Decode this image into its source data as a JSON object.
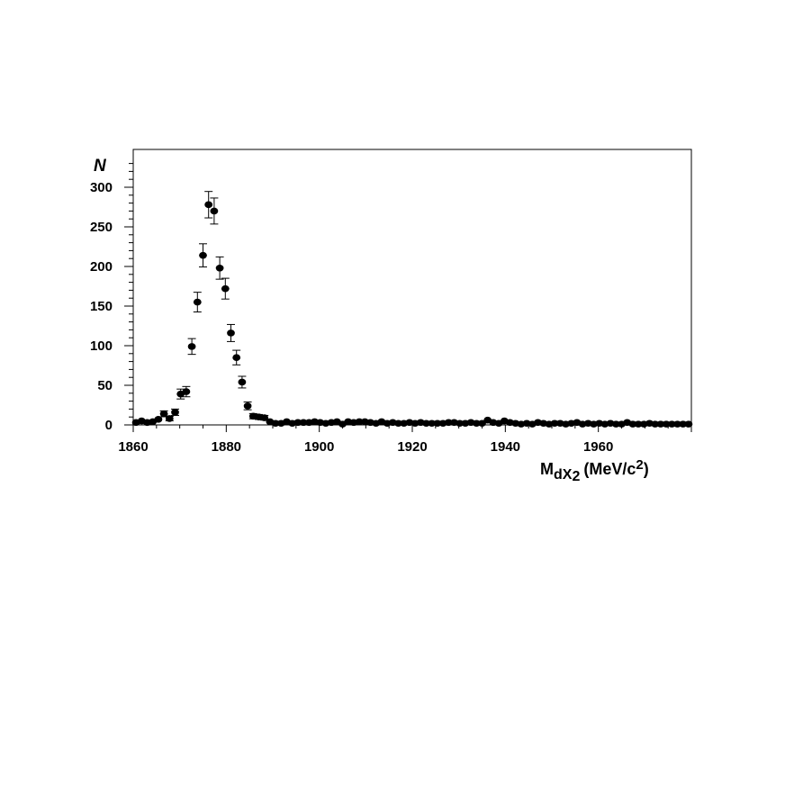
{
  "chart_data": {
    "type": "scatter",
    "ylabel": "N",
    "xlabel": {
      "main": "M",
      "sub": "dX",
      "subsub": "2",
      "unit": "(MeV/c",
      "unit_sup": "2",
      "unit_close": ")"
    },
    "xlim": [
      1860,
      1980
    ],
    "ylim": [
      0,
      300
    ],
    "x_ticks": [
      1860,
      1880,
      1900,
      1920,
      1940,
      1960
    ],
    "y_ticks": [
      0,
      50,
      100,
      150,
      200,
      250,
      300
    ],
    "grid": false,
    "marker": "filled-circle",
    "error_bars": true,
    "points": [
      {
        "x": 1860.6,
        "y": 3
      },
      {
        "x": 1861.8,
        "y": 5
      },
      {
        "x": 1863.0,
        "y": 3
      },
      {
        "x": 1864.2,
        "y": 4
      },
      {
        "x": 1865.4,
        "y": 7
      },
      {
        "x": 1866.6,
        "y": 14
      },
      {
        "x": 1867.8,
        "y": 8
      },
      {
        "x": 1869.0,
        "y": 16
      },
      {
        "x": 1870.2,
        "y": 39
      },
      {
        "x": 1871.4,
        "y": 42
      },
      {
        "x": 1872.6,
        "y": 99
      },
      {
        "x": 1873.8,
        "y": 155
      },
      {
        "x": 1875.0,
        "y": 214
      },
      {
        "x": 1876.2,
        "y": 278
      },
      {
        "x": 1877.4,
        "y": 270
      },
      {
        "x": 1878.6,
        "y": 198
      },
      {
        "x": 1879.8,
        "y": 172
      },
      {
        "x": 1881.0,
        "y": 116
      },
      {
        "x": 1882.2,
        "y": 85
      },
      {
        "x": 1883.4,
        "y": 54
      },
      {
        "x": 1884.6,
        "y": 24
      },
      {
        "x": 1885.8,
        "y": 11
      },
      {
        "x": 1887.0,
        "y": 10
      },
      {
        "x": 1888.2,
        "y": 9
      },
      {
        "x": 1889.4,
        "y": 4
      },
      {
        "x": 1890.6,
        "y": 2
      },
      {
        "x": 1891.8,
        "y": 2
      },
      {
        "x": 1893.0,
        "y": 4
      },
      {
        "x": 1894.2,
        "y": 2
      },
      {
        "x": 1895.4,
        "y": 3
      },
      {
        "x": 1896.6,
        "y": 3
      },
      {
        "x": 1897.8,
        "y": 3
      },
      {
        "x": 1899.0,
        "y": 4
      },
      {
        "x": 1900.2,
        "y": 3
      },
      {
        "x": 1901.4,
        "y": 2
      },
      {
        "x": 1902.6,
        "y": 3
      },
      {
        "x": 1903.8,
        "y": 4
      },
      {
        "x": 1905.0,
        "y": 1
      },
      {
        "x": 1906.2,
        "y": 4
      },
      {
        "x": 1907.4,
        "y": 3
      },
      {
        "x": 1908.6,
        "y": 4
      },
      {
        "x": 1909.8,
        "y": 4
      },
      {
        "x": 1911.0,
        "y": 3
      },
      {
        "x": 1912.2,
        "y": 2
      },
      {
        "x": 1913.4,
        "y": 4
      },
      {
        "x": 1914.6,
        "y": 2
      },
      {
        "x": 1915.8,
        "y": 3
      },
      {
        "x": 1917.0,
        "y": 2
      },
      {
        "x": 1918.2,
        "y": 2
      },
      {
        "x": 1919.4,
        "y": 3
      },
      {
        "x": 1920.6,
        "y": 2
      },
      {
        "x": 1921.8,
        "y": 3
      },
      {
        "x": 1923.0,
        "y": 2
      },
      {
        "x": 1924.2,
        "y": 2
      },
      {
        "x": 1925.4,
        "y": 2
      },
      {
        "x": 1926.6,
        "y": 2
      },
      {
        "x": 1927.8,
        "y": 3
      },
      {
        "x": 1929.0,
        "y": 3
      },
      {
        "x": 1930.2,
        "y": 2
      },
      {
        "x": 1931.4,
        "y": 2
      },
      {
        "x": 1932.6,
        "y": 3
      },
      {
        "x": 1933.8,
        "y": 2
      },
      {
        "x": 1935.0,
        "y": 2
      },
      {
        "x": 1936.2,
        "y": 6
      },
      {
        "x": 1937.4,
        "y": 3
      },
      {
        "x": 1938.6,
        "y": 2
      },
      {
        "x": 1939.8,
        "y": 5
      },
      {
        "x": 1941.0,
        "y": 3
      },
      {
        "x": 1942.2,
        "y": 2
      },
      {
        "x": 1943.4,
        "y": 1
      },
      {
        "x": 1944.6,
        "y": 2
      },
      {
        "x": 1945.8,
        "y": 1
      },
      {
        "x": 1947.0,
        "y": 3
      },
      {
        "x": 1948.2,
        "y": 2
      },
      {
        "x": 1949.4,
        "y": 1
      },
      {
        "x": 1950.6,
        "y": 2
      },
      {
        "x": 1951.8,
        "y": 2
      },
      {
        "x": 1953.0,
        "y": 1
      },
      {
        "x": 1954.2,
        "y": 2
      },
      {
        "x": 1955.4,
        "y": 3
      },
      {
        "x": 1956.6,
        "y": 1
      },
      {
        "x": 1957.8,
        "y": 2
      },
      {
        "x": 1959.0,
        "y": 1
      },
      {
        "x": 1960.2,
        "y": 2
      },
      {
        "x": 1961.4,
        "y": 1
      },
      {
        "x": 1962.6,
        "y": 2
      },
      {
        "x": 1963.8,
        "y": 1
      },
      {
        "x": 1965.0,
        "y": 1
      },
      {
        "x": 1966.2,
        "y": 3
      },
      {
        "x": 1967.4,
        "y": 1
      },
      {
        "x": 1968.6,
        "y": 1
      },
      {
        "x": 1969.8,
        "y": 1
      },
      {
        "x": 1971.0,
        "y": 2
      },
      {
        "x": 1972.2,
        "y": 1
      },
      {
        "x": 1973.4,
        "y": 1
      },
      {
        "x": 1974.6,
        "y": 1
      },
      {
        "x": 1975.8,
        "y": 1
      },
      {
        "x": 1977.0,
        "y": 1
      },
      {
        "x": 1978.2,
        "y": 1
      },
      {
        "x": 1979.4,
        "y": 1
      }
    ]
  }
}
